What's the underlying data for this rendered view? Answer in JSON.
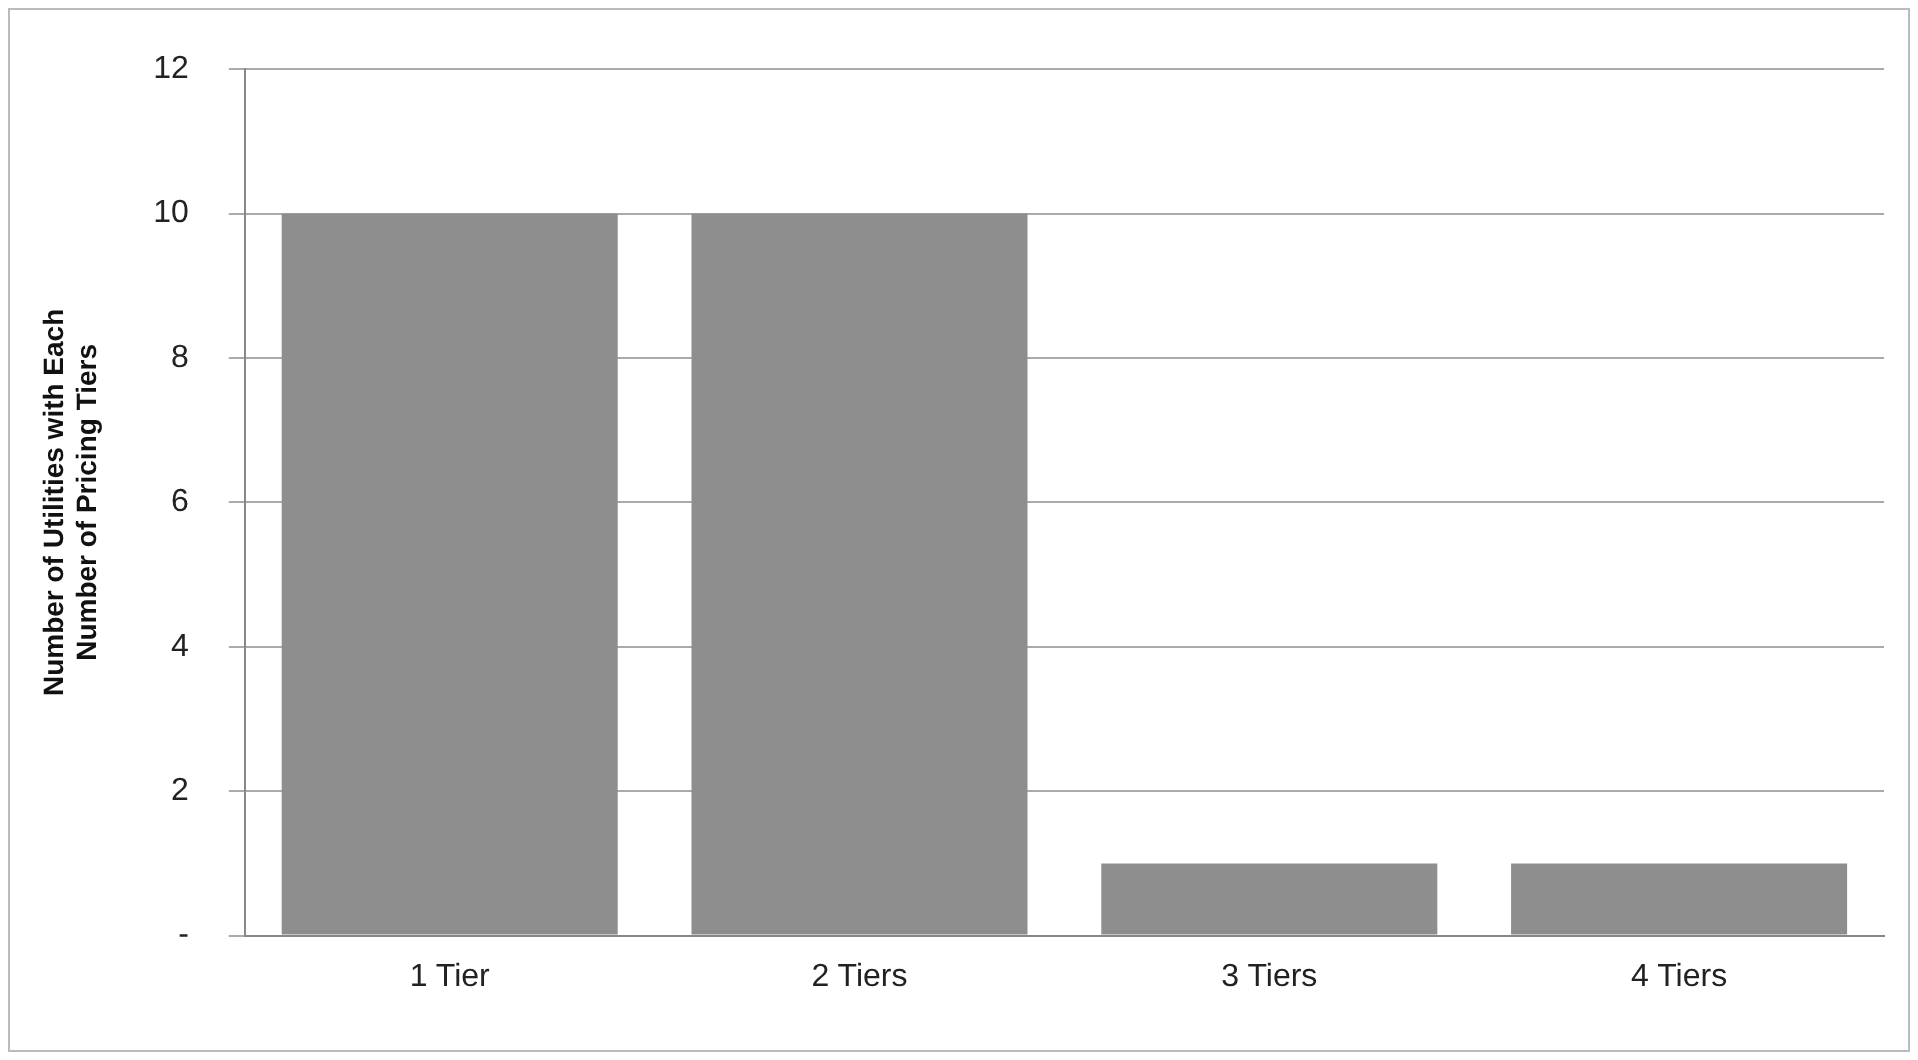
{
  "chart_data": {
    "type": "bar",
    "ylabel": "Number of Utilities with Each Number of Pricing Tiers",
    "categories": [
      "1 Tier",
      "2 Tiers",
      "3 Tiers",
      "4 Tiers"
    ],
    "values": [
      10,
      10,
      1,
      1
    ],
    "color": "#8e8e8e",
    "ylim": [
      0,
      12
    ],
    "yticks": [
      {
        "value": 0,
        "label": "-"
      },
      2,
      4,
      6,
      8,
      10,
      12
    ],
    "grid": "y",
    "legend": false
  }
}
